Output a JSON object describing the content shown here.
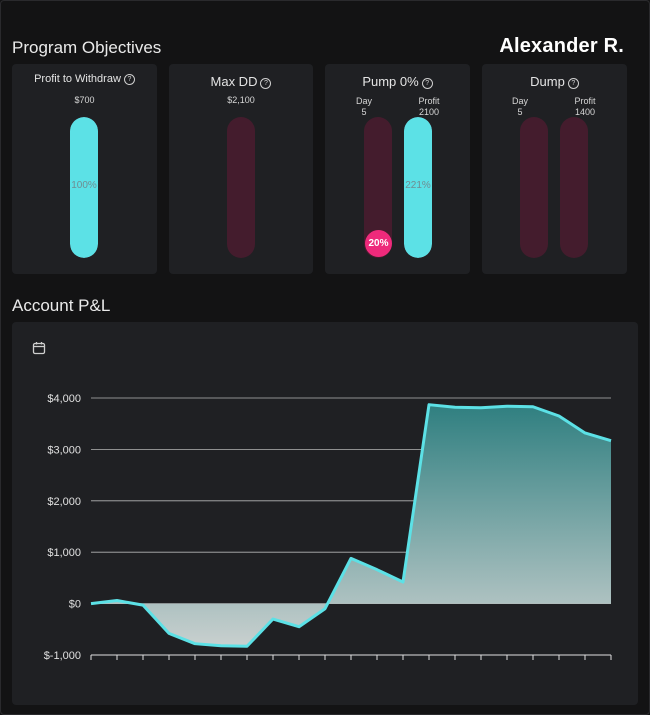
{
  "header": {
    "section_title": "Program Objectives",
    "user_name": "Alexander R."
  },
  "objectives": [
    {
      "id": "profit",
      "title": "Profit to Withdraw",
      "amount": "$700",
      "fill_percent": 100,
      "fill_label": "100%"
    },
    {
      "id": "maxdd",
      "title": "Max DD",
      "amount": "$2,100",
      "fill_percent": 0
    },
    {
      "id": "pump",
      "title": "Pump 0%",
      "day": {
        "label": "Day",
        "value": "5",
        "fill_percent": 20,
        "badge": "20%"
      },
      "profit": {
        "label": "Profit",
        "value": "2100",
        "fill_percent": 100,
        "fill_label": "221%"
      }
    },
    {
      "id": "dump",
      "title": "Dump",
      "day": {
        "label": "Day",
        "value": "5",
        "fill_percent": 0
      },
      "profit": {
        "label": "Profit",
        "value": "1400",
        "fill_percent": 0
      }
    }
  ],
  "pnl": {
    "section_title": "Account P&L",
    "calendar_icon": "calendar-icon"
  },
  "colors": {
    "accent": "#5ce1e6",
    "bar_empty": "#441c2d",
    "badge": "#ee2a7b",
    "card": "#1f2023",
    "background": "#131314"
  },
  "chart_data": {
    "type": "area",
    "y_tick_labels": [
      "$4,000",
      "$3,000",
      "$2,000",
      "$1,000",
      "$0",
      "$-1,000"
    ],
    "y_ticks": [
      4000,
      3000,
      2000,
      1000,
      0,
      -1000
    ],
    "ylim": [
      -1000,
      4000
    ],
    "x": [
      0,
      1,
      2,
      3,
      4,
      5,
      6,
      7,
      8,
      9,
      10,
      11,
      12,
      13,
      14,
      15,
      16,
      17,
      18,
      19,
      20
    ],
    "values": [
      0,
      60,
      -30,
      -580,
      -780,
      -820,
      -830,
      -300,
      -450,
      -100,
      880,
      660,
      420,
      3870,
      3820,
      3810,
      3840,
      3830,
      3650,
      3320,
      3170
    ],
    "grid": true,
    "line_color": "#5ce1e6"
  }
}
